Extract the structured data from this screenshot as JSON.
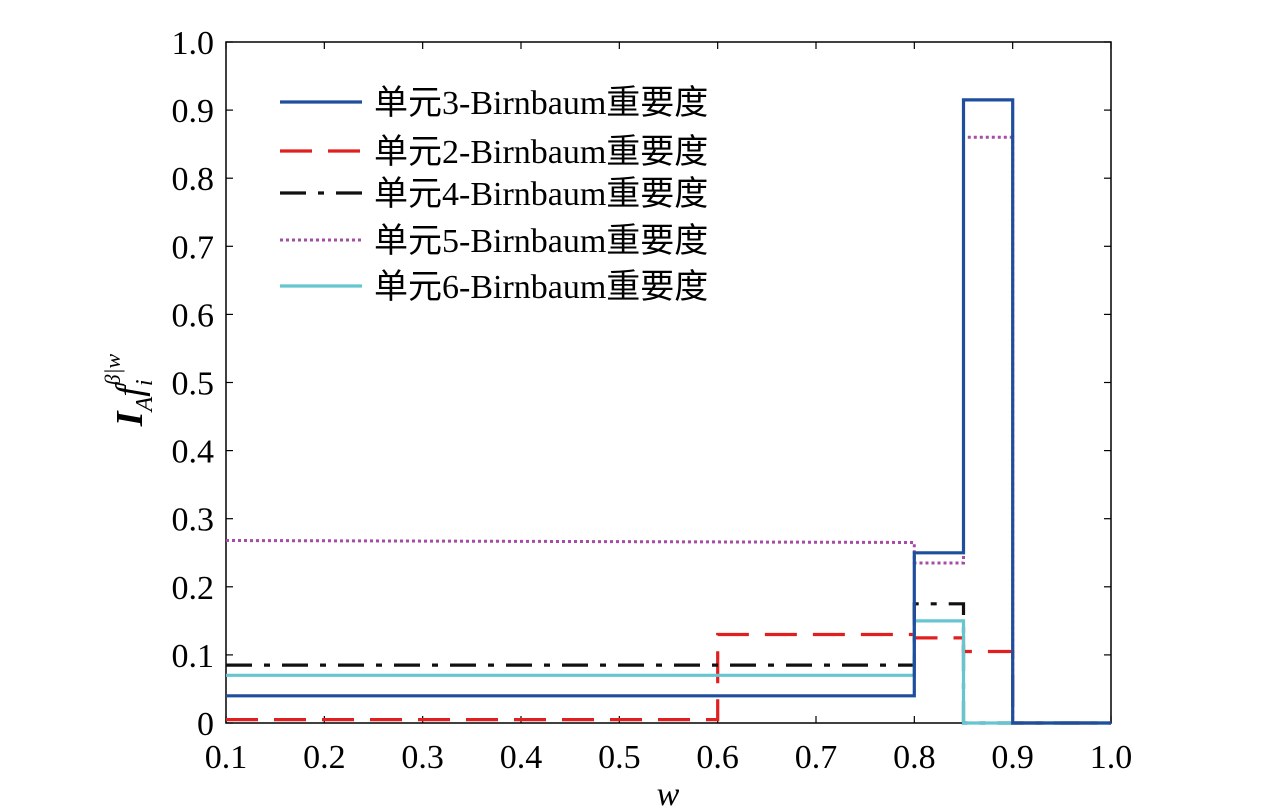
{
  "chart_data": {
    "type": "line",
    "xlabel": "w",
    "ylabel": {
      "main": "I",
      "sub": "A",
      "func": "f",
      "func_sub": "i",
      "func_sup": "β|w"
    },
    "xlim": [
      0.1,
      1.0
    ],
    "ylim": [
      0,
      1.0
    ],
    "x_ticks": [
      "0.1",
      "0.2",
      "0.3",
      "0.4",
      "0.5",
      "0.6",
      "0.7",
      "0.8",
      "0.9",
      "1.0"
    ],
    "y_ticks": [
      "0",
      "0.1",
      "0.2",
      "0.3",
      "0.4",
      "0.5",
      "0.6",
      "0.7",
      "0.8",
      "0.9",
      "1.0"
    ],
    "grid": false,
    "legend_position": "top-left",
    "series": [
      {
        "name": "单元3-Birnbaum重要度",
        "color": "#1f4e9c",
        "style": "solid",
        "points": [
          [
            0.1,
            0.04
          ],
          [
            0.8,
            0.04
          ],
          [
            0.8,
            0.25
          ],
          [
            0.85,
            0.25
          ],
          [
            0.85,
            0.915
          ],
          [
            0.9,
            0.915
          ],
          [
            0.9,
            0.0
          ],
          [
            1.0,
            0.0
          ]
        ]
      },
      {
        "name": "单元2-Birnbaum重要度",
        "color": "#e02020",
        "style": "dashed",
        "points": [
          [
            0.1,
            0.005
          ],
          [
            0.6,
            0.005
          ],
          [
            0.6,
            0.13
          ],
          [
            0.8,
            0.13
          ],
          [
            0.8,
            0.125
          ],
          [
            0.85,
            0.125
          ],
          [
            0.85,
            0.105
          ],
          [
            0.9,
            0.105
          ],
          [
            0.9,
            0.0
          ],
          [
            1.0,
            0.0
          ]
        ]
      },
      {
        "name": "单元4-Birnbaum重要度",
        "color": "#111111",
        "style": "dashdot",
        "points": [
          [
            0.1,
            0.085
          ],
          [
            0.8,
            0.085
          ],
          [
            0.8,
            0.175
          ],
          [
            0.85,
            0.175
          ],
          [
            0.85,
            0.0
          ],
          [
            1.0,
            0.0
          ]
        ]
      },
      {
        "name": "单元5-Birnbaum重要度",
        "color": "#a64ca6",
        "style": "dotted",
        "points": [
          [
            0.1,
            0.268
          ],
          [
            0.8,
            0.265
          ],
          [
            0.8,
            0.235
          ],
          [
            0.85,
            0.235
          ],
          [
            0.85,
            0.86
          ],
          [
            0.9,
            0.86
          ],
          [
            0.9,
            0.0
          ],
          [
            1.0,
            0.0
          ]
        ]
      },
      {
        "name": "单元6-Birnbaum重要度",
        "color": "#66c6d0",
        "style": "solid",
        "points": [
          [
            0.1,
            0.07
          ],
          [
            0.8,
            0.07
          ],
          [
            0.8,
            0.15
          ],
          [
            0.85,
            0.15
          ],
          [
            0.85,
            0.0
          ],
          [
            1.0,
            0.0
          ]
        ]
      }
    ]
  }
}
